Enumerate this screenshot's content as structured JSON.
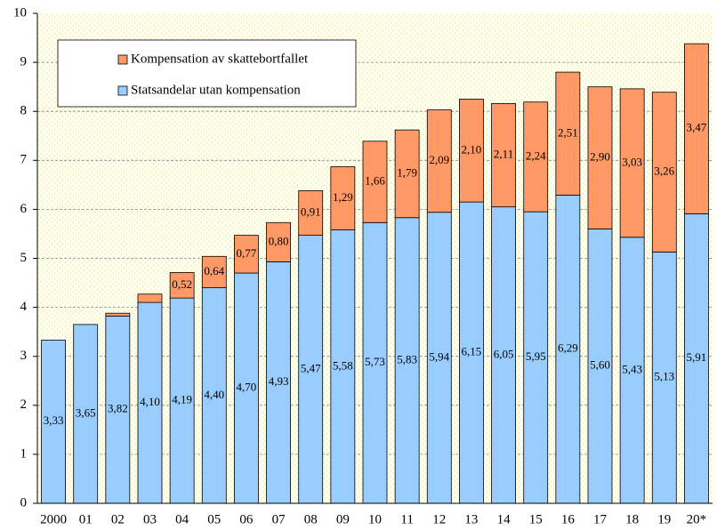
{
  "chart_data": {
    "type": "stacked-bar",
    "categories": [
      "2000",
      "01",
      "02",
      "03",
      "04",
      "05",
      "06",
      "07",
      "08",
      "09",
      "10",
      "11",
      "12",
      "13",
      "14",
      "15",
      "16",
      "17",
      "18",
      "19",
      "20*"
    ],
    "series": [
      {
        "name": "Statsandelar utan kompensation",
        "color": "#99ccff",
        "values": [
          3.33,
          3.65,
          3.82,
          4.1,
          4.19,
          4.4,
          4.7,
          4.93,
          5.47,
          5.58,
          5.73,
          5.83,
          5.94,
          6.15,
          6.05,
          5.95,
          6.29,
          5.6,
          5.43,
          5.13,
          5.91
        ],
        "value_labels": [
          "3,33",
          "3,65",
          "3,82",
          "4,10",
          "4,19",
          "4,40",
          "4,70",
          "4,93",
          "5,47",
          "5,58",
          "5,73",
          "5,83",
          "5,94",
          "6,15",
          "6,05",
          "5,95",
          "6,29",
          "5,60",
          "5,43",
          "5,13",
          "5,91"
        ]
      },
      {
        "name": "Kompensation av skattebortfallet",
        "color": "#ff9966",
        "values": [
          null,
          null,
          0.06,
          0.17,
          0.52,
          0.64,
          0.77,
          0.8,
          0.91,
          1.29,
          1.66,
          1.79,
          2.09,
          2.1,
          2.11,
          2.24,
          2.51,
          2.9,
          3.03,
          3.26,
          3.47
        ],
        "value_labels": [
          null,
          null,
          null,
          null,
          "0,52",
          "0,64",
          "0,77",
          "0,80",
          "0,91",
          "1,29",
          "1,66",
          "1,79",
          "2,09",
          "2,10",
          "2,11",
          "2,24",
          "2,51",
          "2,90",
          "3,03",
          "3,26",
          "3,47"
        ]
      }
    ],
    "ylim": [
      0,
      10
    ],
    "yticks": [
      0,
      1,
      2,
      3,
      4,
      5,
      6,
      7,
      8,
      9,
      10
    ],
    "grid": true
  }
}
